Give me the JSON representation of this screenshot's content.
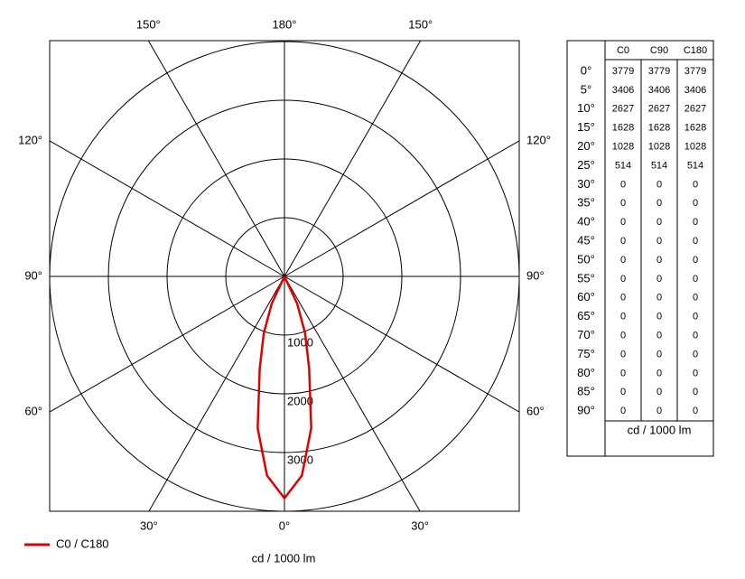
{
  "chart_data": {
    "type": "polar",
    "axis_label": "cd / 1000 lm",
    "legend_label": "C0 / C180",
    "line_color": "#e00000",
    "rlim": [
      0,
      4000
    ],
    "rticks": [
      1000,
      2000,
      3000
    ],
    "angle_ticks": [
      {
        "value": 0,
        "label": "0°"
      },
      {
        "value": 30,
        "label": "30°"
      },
      {
        "value": 60,
        "label": "60°"
      },
      {
        "value": 90,
        "label": "90°"
      },
      {
        "value": 120,
        "label": "120°"
      },
      {
        "value": 150,
        "label": "150°"
      },
      {
        "value": 180,
        "label": "180°"
      }
    ],
    "x": [
      {
        "value": 0,
        "label": "0°"
      },
      {
        "value": 5,
        "label": "5°"
      },
      {
        "value": 10,
        "label": "10°"
      },
      {
        "value": 15,
        "label": "15°"
      },
      {
        "value": 20,
        "label": "20°"
      },
      {
        "value": 25,
        "label": "25°"
      },
      {
        "value": 30,
        "label": "30°"
      },
      {
        "value": 35,
        "label": "35°"
      },
      {
        "value": 40,
        "label": "40°"
      },
      {
        "value": 45,
        "label": "45°"
      },
      {
        "value": 50,
        "label": "50°"
      },
      {
        "value": 55,
        "label": "55°"
      },
      {
        "value": 60,
        "label": "60°"
      },
      {
        "value": 65,
        "label": "65°"
      },
      {
        "value": 70,
        "label": "70°"
      },
      {
        "value": 75,
        "label": "75°"
      },
      {
        "value": 80,
        "label": "80°"
      },
      {
        "value": 85,
        "label": "85°"
      },
      {
        "value": 90,
        "label": "90°"
      }
    ],
    "series": [
      {
        "name": "C0",
        "values": [
          3779,
          3406,
          2627,
          1628,
          1028,
          514,
          0,
          0,
          0,
          0,
          0,
          0,
          0,
          0,
          0,
          0,
          0,
          0,
          0
        ]
      },
      {
        "name": "C90",
        "values": [
          3779,
          3406,
          2627,
          1628,
          1028,
          514,
          0,
          0,
          0,
          0,
          0,
          0,
          0,
          0,
          0,
          0,
          0,
          0,
          0
        ]
      },
      {
        "name": "C180",
        "values": [
          3779,
          3406,
          2627,
          1628,
          1028,
          514,
          0,
          0,
          0,
          0,
          0,
          0,
          0,
          0,
          0,
          0,
          0,
          0,
          0
        ]
      }
    ],
    "table_footer": "cd / 1000 lm"
  }
}
